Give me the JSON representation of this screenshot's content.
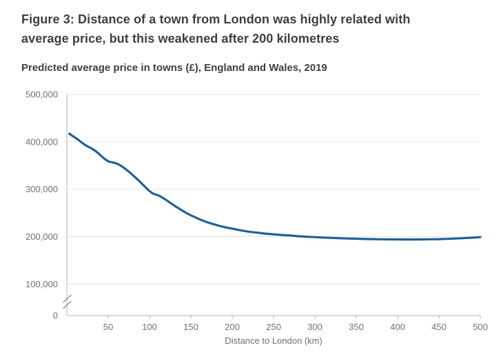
{
  "figure": {
    "title_line1": "Figure 3: Distance of a town from London was highly related with",
    "title_line2": "average price, but this weakened after 200 kilometres",
    "subtitle": "Predicted average price in towns (£), England and Wales, 2019"
  },
  "colors": {
    "line": "#206095",
    "title_text": "#3e3e40",
    "tick_text": "#707071",
    "axis": "#b3b3b3",
    "gridline": "#e4e4e4",
    "break_mark": "#8e8e8e"
  },
  "chart_data": {
    "type": "line",
    "title": "Figure 3: Distance of a town from London was highly related with average price, but this weakened after 200 kilometres",
    "subtitle": "Predicted average price in towns (£), England and Wales, 2019",
    "xlabel": "Distance to London (km)",
    "ylabel": "Predicted average price in towns (£)",
    "xlim": [
      0,
      500
    ],
    "ylim": [
      0,
      500000
    ],
    "grid": "horizontal",
    "legend": "none",
    "y_axis_break": true,
    "x_ticks": [
      50,
      100,
      150,
      200,
      250,
      300,
      350,
      400,
      450,
      500
    ],
    "y_ticks": [
      {
        "label": "500,000",
        "value": 500000
      },
      {
        "label": "400,000",
        "value": 400000
      },
      {
        "label": "300,000",
        "value": 300000
      },
      {
        "label": "200,000",
        "value": 200000
      },
      {
        "label": "100,000",
        "value": 100000
      },
      {
        "label": "0",
        "value": 0
      }
    ],
    "series": [
      {
        "name": "Predicted average price",
        "points": [
          [
            3,
            417000
          ],
          [
            6,
            413500
          ],
          [
            10,
            409000
          ],
          [
            14,
            404000
          ],
          [
            18,
            398500
          ],
          [
            22,
            393500
          ],
          [
            26,
            389500
          ],
          [
            30,
            386000
          ],
          [
            34,
            381500
          ],
          [
            38,
            376000
          ],
          [
            42,
            369500
          ],
          [
            46,
            363500
          ],
          [
            50,
            359000
          ],
          [
            54,
            357000
          ],
          [
            58,
            355500
          ],
          [
            62,
            353000
          ],
          [
            66,
            349000
          ],
          [
            70,
            344000
          ],
          [
            75,
            337000
          ],
          [
            80,
            329500
          ],
          [
            85,
            321500
          ],
          [
            90,
            313000
          ],
          [
            95,
            304500
          ],
          [
            100,
            296000
          ],
          [
            104,
            291000
          ],
          [
            108,
            288500
          ],
          [
            112,
            286000
          ],
          [
            116,
            282000
          ],
          [
            120,
            277500
          ],
          [
            125,
            271500
          ],
          [
            130,
            265500
          ],
          [
            135,
            260000
          ],
          [
            140,
            254500
          ],
          [
            145,
            249500
          ],
          [
            150,
            245000
          ],
          [
            155,
            241000
          ],
          [
            160,
            237000
          ],
          [
            165,
            233500
          ],
          [
            170,
            230500
          ],
          [
            175,
            227500
          ],
          [
            180,
            225000
          ],
          [
            185,
            222500
          ],
          [
            190,
            220500
          ],
          [
            195,
            218500
          ],
          [
            200,
            217000
          ],
          [
            210,
            213500
          ],
          [
            220,
            210500
          ],
          [
            230,
            208500
          ],
          [
            240,
            206500
          ],
          [
            250,
            205000
          ],
          [
            260,
            203500
          ],
          [
            270,
            202500
          ],
          [
            280,
            201000
          ],
          [
            290,
            200000
          ],
          [
            300,
            199000
          ],
          [
            310,
            198200
          ],
          [
            320,
            197400
          ],
          [
            330,
            196800
          ],
          [
            340,
            196200
          ],
          [
            350,
            195700
          ],
          [
            360,
            195200
          ],
          [
            370,
            194800
          ],
          [
            380,
            194500
          ],
          [
            390,
            194300
          ],
          [
            400,
            194200
          ],
          [
            410,
            194100
          ],
          [
            420,
            194100
          ],
          [
            430,
            194200
          ],
          [
            440,
            194500
          ],
          [
            450,
            194900
          ],
          [
            460,
            195400
          ],
          [
            470,
            196100
          ],
          [
            480,
            196900
          ],
          [
            490,
            197900
          ],
          [
            500,
            199000
          ]
        ]
      }
    ]
  }
}
